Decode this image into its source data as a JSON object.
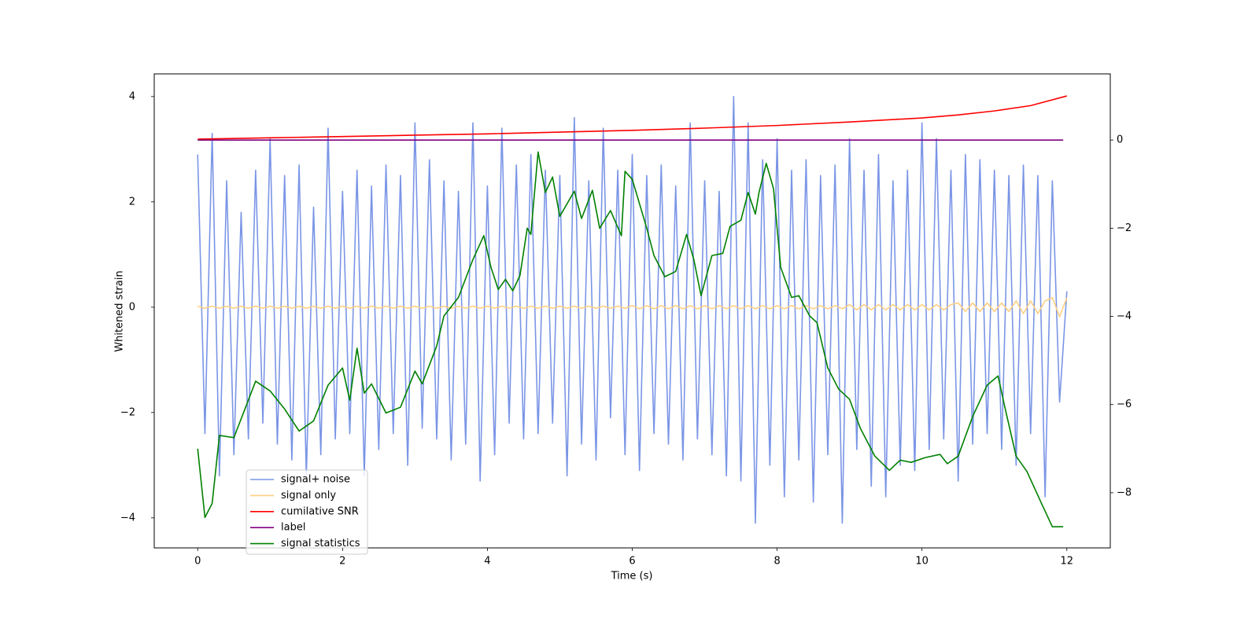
{
  "chart_data": {
    "type": "line",
    "xlabel": "Time (s)",
    "ylabel": "Whitened strain",
    "xlim": [
      -0.6,
      12.6
    ],
    "ylim": [
      -4.57,
      4.43
    ],
    "y2lim": [
      -9.25,
      1.5
    ],
    "xticks": [
      0,
      2,
      4,
      6,
      8,
      10,
      12
    ],
    "yticks": [
      {
        "value": -4,
        "label": "−4"
      },
      {
        "value": -2,
        "label": "−2"
      },
      0,
      2,
      4
    ],
    "y2ticks": [
      {
        "value": -8,
        "label": "−8"
      },
      {
        "value": -6,
        "label": "−6"
      },
      {
        "value": -4,
        "label": "−4"
      },
      {
        "value": -2,
        "label": "−2"
      },
      0
    ],
    "legend": "lower left",
    "series": [
      {
        "name": "signal+ noise",
        "color": "#7a95e6",
        "x": [
          0,
          0.1,
          0.2,
          0.3,
          0.4,
          0.5,
          0.6,
          0.7,
          0.8,
          0.9,
          1,
          1.1,
          1.2,
          1.3,
          1.4,
          1.5,
          1.6,
          1.7,
          1.8,
          1.9,
          2,
          2.1,
          2.2,
          2.3,
          2.4,
          2.5,
          2.6,
          2.7,
          2.8,
          2.9,
          3,
          3.1,
          3.2,
          3.3,
          3.4,
          3.5,
          3.6,
          3.7,
          3.8,
          3.9,
          4,
          4.1,
          4.2,
          4.3,
          4.4,
          4.5,
          4.6,
          4.7,
          4.8,
          4.9,
          5,
          5.1,
          5.2,
          5.3,
          5.4,
          5.5,
          5.6,
          5.7,
          5.8,
          5.9,
          6,
          6.1,
          6.2,
          6.3,
          6.4,
          6.5,
          6.6,
          6.7,
          6.8,
          6.9,
          7,
          7.1,
          7.2,
          7.3,
          7.4,
          7.5,
          7.6,
          7.7,
          7.8,
          7.9,
          8,
          8.1,
          8.2,
          8.3,
          8.4,
          8.5,
          8.6,
          8.7,
          8.8,
          8.9,
          9,
          9.1,
          9.2,
          9.3,
          9.4,
          9.5,
          9.6,
          9.7,
          9.8,
          9.9,
          10,
          10.1,
          10.2,
          10.3,
          10.4,
          10.5,
          10.6,
          10.7,
          10.8,
          10.9,
          11,
          11.1,
          11.2,
          11.3,
          11.4,
          11.5,
          11.6,
          11.7,
          11.8,
          11.9,
          12
        ],
        "values": [
          2.9,
          -2.4,
          3.3,
          -3.2,
          2.4,
          -2.8,
          1.8,
          -2.5,
          2.6,
          -2.2,
          3.2,
          -2.6,
          2.5,
          -2.9,
          2.7,
          -3.2,
          1.9,
          -2.8,
          3.4,
          -2.5,
          2.2,
          -2.4,
          2.6,
          -3.2,
          2.3,
          -2.7,
          2.7,
          -2.4,
          2.5,
          -3.0,
          3.5,
          -2.3,
          2.8,
          -2.5,
          2.4,
          -2.9,
          2.2,
          -2.6,
          3.5,
          -3.3,
          2.3,
          -2.8,
          3.4,
          -2.2,
          2.7,
          -2.5,
          2.9,
          -2.4,
          2.6,
          -2.2,
          2.5,
          -3.2,
          3.6,
          -2.6,
          2.4,
          -2.9,
          3.4,
          -2.1,
          2.6,
          -2.8,
          2.9,
          -3.1,
          2.5,
          -2.4,
          2.7,
          -2.6,
          2.3,
          -2.9,
          3.5,
          -2.5,
          2.4,
          -2.8,
          2.2,
          -3.2,
          4.0,
          -3.3,
          3.5,
          -4.1,
          2.8,
          -3.0,
          3.2,
          -3.6,
          2.6,
          -2.9,
          2.8,
          -3.7,
          2.5,
          -2.8,
          2.7,
          -4.1,
          3.2,
          -2.7,
          2.6,
          -3.4,
          2.9,
          -3.6,
          2.4,
          -3.0,
          2.6,
          -3.1,
          3.5,
          -2.7,
          3.2,
          -2.5,
          2.6,
          -3.3,
          2.9,
          -2.6,
          2.8,
          -2.4,
          2.6,
          -2.7,
          2.5,
          -3.0,
          2.7,
          -2.4,
          2.5,
          -3.6,
          2.4,
          -1.8,
          0.3
        ]
      },
      {
        "name": "signal only",
        "color": "#ffcf80",
        "x": [
          0,
          0.1,
          0.2,
          0.3,
          0.4,
          0.5,
          0.6,
          0.7,
          0.8,
          0.9,
          1,
          1.1,
          1.2,
          1.3,
          1.4,
          1.5,
          1.6,
          1.7,
          1.8,
          1.9,
          2,
          2.1,
          2.2,
          2.3,
          2.4,
          2.5,
          2.6,
          2.7,
          2.8,
          2.9,
          3,
          3.1,
          3.2,
          3.3,
          3.4,
          3.5,
          3.6,
          3.7,
          3.8,
          3.9,
          4,
          4.1,
          4.2,
          4.3,
          4.4,
          4.5,
          4.6,
          4.7,
          4.8,
          4.9,
          5,
          5.1,
          5.2,
          5.3,
          5.4,
          5.5,
          5.6,
          5.7,
          5.8,
          5.9,
          6,
          6.1,
          6.2,
          6.3,
          6.4,
          6.5,
          6.6,
          6.7,
          6.8,
          6.9,
          7,
          7.1,
          7.2,
          7.3,
          7.4,
          7.5,
          7.6,
          7.7,
          7.8,
          7.9,
          8,
          8.1,
          8.2,
          8.3,
          8.4,
          8.5,
          8.6,
          8.7,
          8.8,
          8.9,
          9,
          9.1,
          9.2,
          9.3,
          9.4,
          9.5,
          9.6,
          9.7,
          9.8,
          9.9,
          10,
          10.1,
          10.2,
          10.3,
          10.4,
          10.5,
          10.6,
          10.7,
          10.8,
          10.9,
          11,
          11.1,
          11.2,
          11.3,
          11.4,
          11.5,
          11.6,
          11.7,
          11.8,
          11.9,
          12
        ],
        "values": [
          0.02,
          -0.02,
          0.02,
          -0.02,
          0.02,
          -0.02,
          0.02,
          -0.02,
          0.02,
          -0.02,
          0.02,
          -0.02,
          0.02,
          -0.02,
          0.02,
          -0.02,
          0.02,
          -0.02,
          0.02,
          -0.02,
          0.02,
          -0.02,
          0.02,
          -0.02,
          0.02,
          -0.02,
          0.02,
          -0.02,
          0.02,
          -0.02,
          0.02,
          -0.02,
          0.02,
          -0.02,
          0.02,
          -0.02,
          0.02,
          -0.02,
          0.02,
          -0.02,
          0.02,
          -0.02,
          0.02,
          -0.02,
          0.02,
          -0.02,
          0.02,
          -0.02,
          0.02,
          -0.02,
          0.02,
          -0.02,
          0.02,
          -0.02,
          0.02,
          -0.02,
          0.02,
          -0.02,
          0.02,
          -0.02,
          0.03,
          -0.03,
          0.03,
          -0.03,
          0.03,
          -0.03,
          0.03,
          -0.03,
          0.03,
          -0.03,
          0.03,
          -0.03,
          0.03,
          -0.03,
          0.03,
          -0.03,
          0.03,
          -0.03,
          0.03,
          -0.03,
          0.03,
          -0.03,
          0.03,
          -0.03,
          0.03,
          -0.03,
          0.03,
          -0.03,
          0.03,
          -0.03,
          0.05,
          -0.05,
          0.05,
          -0.05,
          0.05,
          -0.05,
          0.05,
          -0.05,
          0.05,
          -0.05,
          0.05,
          -0.05,
          0.05,
          -0.05,
          0.05,
          0.08,
          -0.08,
          0.08,
          -0.08,
          0.08,
          -0.08,
          0.08,
          -0.08,
          0.12,
          -0.12,
          0.12,
          -0.12,
          0.12,
          0.18,
          -0.18,
          0.18
        ]
      },
      {
        "name": "cumilative SNR",
        "color": "#ff0000",
        "axis": "y2",
        "x": [
          0,
          1,
          2,
          3,
          4,
          5,
          6,
          7,
          8,
          9,
          10,
          10.5,
          11,
          11.5,
          12
        ],
        "values": [
          0.02,
          0.05,
          0.08,
          0.11,
          0.14,
          0.18,
          0.22,
          0.27,
          0.33,
          0.41,
          0.5,
          0.57,
          0.66,
          0.78,
          1.0
        ]
      },
      {
        "name": "label",
        "color": "#800080",
        "axis": "y2",
        "x": [
          0,
          11.95
        ],
        "values": [
          0,
          0
        ]
      },
      {
        "name": "signal statistics",
        "color": "#008000",
        "axis": "y2",
        "x": [
          0,
          0.1,
          0.2,
          0.3,
          0.5,
          0.8,
          1.0,
          1.2,
          1.4,
          1.6,
          1.8,
          2.0,
          2.1,
          2.2,
          2.3,
          2.4,
          2.6,
          2.8,
          3.0,
          3.1,
          3.3,
          3.4,
          3.6,
          3.8,
          3.95,
          4.05,
          4.15,
          4.25,
          4.35,
          4.45,
          4.55,
          4.6,
          4.7,
          4.8,
          4.9,
          5.0,
          5.2,
          5.3,
          5.45,
          5.55,
          5.7,
          5.85,
          5.9,
          6.0,
          6.2,
          6.3,
          6.45,
          6.6,
          6.75,
          6.85,
          6.95,
          7.1,
          7.25,
          7.35,
          7.5,
          7.6,
          7.7,
          7.75,
          7.85,
          7.95,
          8.05,
          8.2,
          8.3,
          8.45,
          8.55,
          8.7,
          8.85,
          9.0,
          9.15,
          9.35,
          9.55,
          9.7,
          9.85,
          10.05,
          10.25,
          10.35,
          10.5,
          10.7,
          10.9,
          11.05,
          11.15,
          11.3,
          11.45,
          11.65,
          11.8,
          11.95
        ],
        "values": [
          -7.0,
          -8.56,
          -8.24,
          -6.7,
          -6.75,
          -5.47,
          -5.69,
          -6.1,
          -6.6,
          -6.37,
          -5.56,
          -5.17,
          -5.9,
          -4.72,
          -5.74,
          -5.53,
          -6.19,
          -6.06,
          -5.24,
          -5.53,
          -4.67,
          -3.99,
          -3.57,
          -2.71,
          -2.17,
          -2.89,
          -3.39,
          -3.16,
          -3.42,
          -3.07,
          -2.0,
          -2.14,
          -0.27,
          -1.19,
          -0.84,
          -1.73,
          -1.16,
          -1.78,
          -1.14,
          -2.0,
          -1.6,
          -2.17,
          -0.71,
          -0.89,
          -2.0,
          -2.62,
          -3.1,
          -2.98,
          -2.14,
          -2.71,
          -3.53,
          -2.62,
          -2.57,
          -1.96,
          -1.82,
          -1.19,
          -1.68,
          -1.19,
          -0.53,
          -1.1,
          -2.89,
          -3.57,
          -3.53,
          -3.99,
          -4.14,
          -5.17,
          -5.65,
          -5.88,
          -6.54,
          -7.17,
          -7.49,
          -7.26,
          -7.31,
          -7.2,
          -7.13,
          -7.34,
          -7.17,
          -6.27,
          -5.56,
          -5.35,
          -6.1,
          -7.17,
          -7.52,
          -8.24,
          -8.77,
          -8.77
        ]
      }
    ]
  }
}
